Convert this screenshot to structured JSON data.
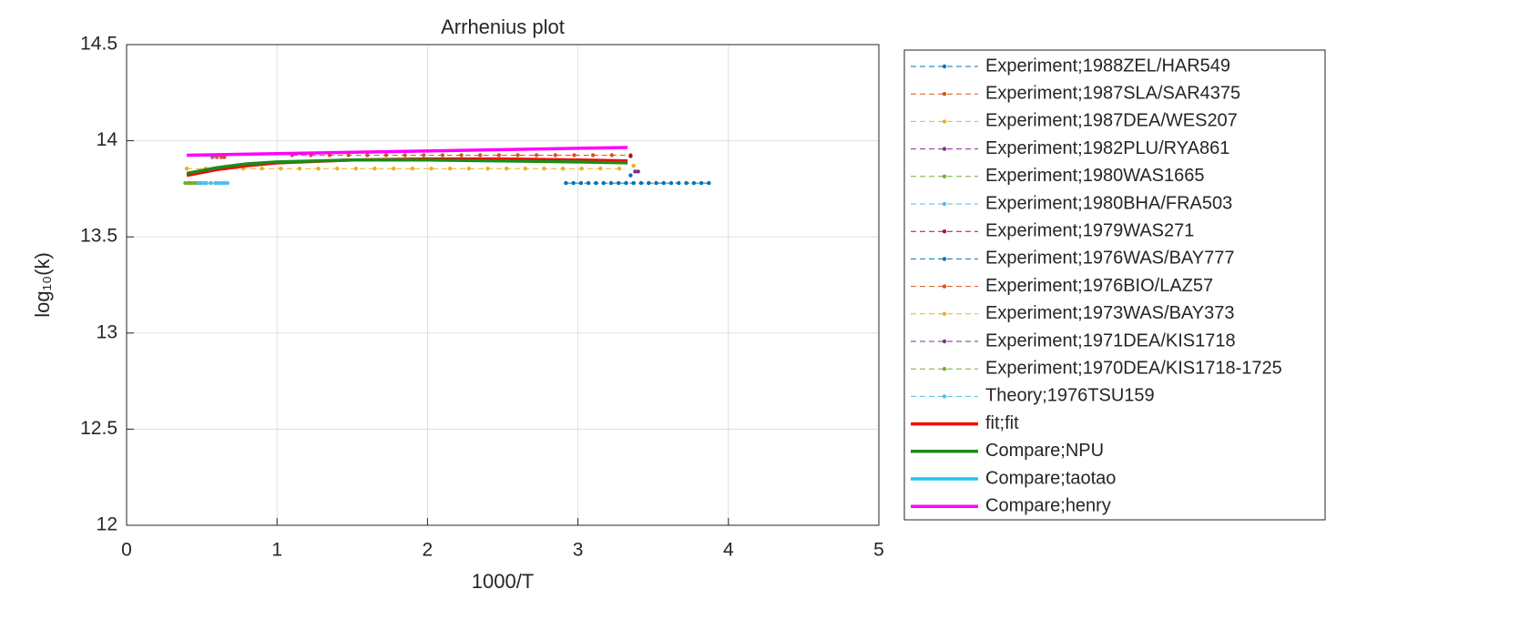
{
  "chart_data": {
    "type": "line",
    "title": "Arrhenius plot",
    "xlabel": "1000/T",
    "ylabel": "log₁₀(k)",
    "xlim": [
      0,
      5
    ],
    "ylim": [
      12,
      14.5
    ],
    "xticks": [
      0,
      1,
      2,
      3,
      4,
      5
    ],
    "yticks": [
      12,
      12.5,
      13,
      13.5,
      14,
      14.5
    ],
    "grid": true,
    "legend": "outside-right",
    "series": [
      {
        "name": "Experiment;1988ZEL/HAR549",
        "color": "#0072BD",
        "linestyle": "dashed",
        "x": [
          2.92,
          2.97,
          3.02,
          3.07,
          3.12,
          3.17,
          3.22,
          3.27,
          3.32,
          3.37,
          3.42,
          3.47,
          3.52,
          3.57,
          3.62,
          3.67,
          3.72,
          3.77,
          3.82,
          3.87
        ],
        "values": [
          13.78,
          13.78,
          13.78,
          13.78,
          13.78,
          13.78,
          13.78,
          13.78,
          13.78,
          13.78,
          13.78,
          13.78,
          13.78,
          13.78,
          13.78,
          13.78,
          13.78,
          13.78,
          13.78,
          13.78
        ]
      },
      {
        "name": "Experiment;1987SLA/SAR4375",
        "color": "#D95319",
        "linestyle": "dashed",
        "x": [
          1.1,
          1.225,
          1.35,
          1.475,
          1.6,
          1.725,
          1.85,
          1.975,
          2.1,
          2.225,
          2.35,
          2.475,
          2.6,
          2.725,
          2.85,
          2.975,
          3.1,
          3.225,
          3.35
        ],
        "values": [
          13.925,
          13.925,
          13.925,
          13.925,
          13.925,
          13.925,
          13.925,
          13.925,
          13.925,
          13.925,
          13.925,
          13.925,
          13.925,
          13.925,
          13.925,
          13.925,
          13.925,
          13.925,
          13.925
        ]
      },
      {
        "name": "Experiment;1987DEA/WES207",
        "color": "#EDB120",
        "linestyle": "dashed",
        "x": [
          0.4,
          0.525,
          0.65,
          0.775,
          0.9,
          1.025,
          1.15,
          1.275,
          1.4,
          1.525,
          1.65,
          1.775,
          1.9,
          2.025,
          2.15,
          2.275,
          2.4,
          2.525,
          2.65,
          2.775,
          2.9,
          3.025,
          3.15,
          3.275
        ],
        "values": [
          13.855,
          13.855,
          13.855,
          13.855,
          13.855,
          13.855,
          13.855,
          13.855,
          13.855,
          13.855,
          13.855,
          13.855,
          13.855,
          13.855,
          13.855,
          13.855,
          13.855,
          13.855,
          13.855,
          13.855,
          13.855,
          13.855,
          13.855,
          13.855
        ]
      },
      {
        "name": "Experiment;1982PLU/RYA861",
        "color": "#7E2F8E",
        "linestyle": "dashed",
        "x": [
          3.38
        ],
        "values": [
          13.84
        ]
      },
      {
        "name": "Experiment;1980WAS1665",
        "color": "#77AC30",
        "linestyle": "dashed",
        "x": [
          0.39,
          0.41,
          0.43,
          0.45,
          0.47,
          0.49
        ],
        "values": [
          13.78,
          13.78,
          13.78,
          13.78,
          13.78,
          13.78
        ]
      },
      {
        "name": "Experiment;1980BHA/FRA503",
        "color": "#4DBEEE",
        "linestyle": "dashed",
        "x": [
          0.5,
          0.53,
          0.56,
          0.59,
          0.62,
          0.65
        ],
        "values": [
          13.78,
          13.78,
          13.78,
          13.78,
          13.78,
          13.78
        ]
      },
      {
        "name": "Experiment;1979WAS271",
        "color": "#A2142F",
        "linestyle": "dashed",
        "x": [
          3.35
        ],
        "values": [
          13.92
        ]
      },
      {
        "name": "Experiment;1976WAS/BAY777",
        "color": "#0072BD",
        "linestyle": "dashed",
        "x": [
          3.35
        ],
        "values": [
          13.82
        ]
      },
      {
        "name": "Experiment;1976BIO/LAZ57",
        "color": "#D95319",
        "linestyle": "dashed",
        "x": [
          0.57,
          0.6,
          0.63,
          0.65
        ],
        "values": [
          13.915,
          13.915,
          13.915,
          13.915
        ]
      },
      {
        "name": "Experiment;1973WAS/BAY373",
        "color": "#EDB120",
        "linestyle": "dashed",
        "x": [
          3.37
        ],
        "values": [
          13.87
        ]
      },
      {
        "name": "Experiment;1971DEA/KIS1718",
        "color": "#7E2F8E",
        "linestyle": "dashed",
        "x": [
          3.4
        ],
        "values": [
          13.84
        ]
      },
      {
        "name": "Experiment;1970DEA/KIS1718-1725",
        "color": "#77AC30",
        "linestyle": "dashed",
        "x": [
          0.42
        ],
        "values": [
          13.78
        ]
      },
      {
        "name": "Theory;1976TSU159",
        "color": "#4DBEEE",
        "linestyle": "dashed",
        "x": [
          0.48,
          0.52,
          0.56,
          0.6,
          0.64,
          0.67
        ],
        "values": [
          13.78,
          13.78,
          13.78,
          13.78,
          13.78,
          13.78
        ]
      },
      {
        "name": "fit;fit",
        "color": "#FF0000",
        "linestyle": "solid",
        "x": [
          0.4,
          0.6,
          0.8,
          1,
          1.5,
          2,
          2.5,
          3,
          3.33
        ],
        "values": [
          13.82,
          13.85,
          13.87,
          13.885,
          13.9,
          13.905,
          13.905,
          13.9,
          13.895
        ]
      },
      {
        "name": "Compare;NPU",
        "color": "#1A8C1A",
        "linestyle": "solid",
        "x": [
          0.4,
          0.6,
          0.8,
          1,
          1.5,
          2,
          2.5,
          3,
          3.33
        ],
        "values": [
          13.83,
          13.86,
          13.88,
          13.89,
          13.9,
          13.9,
          13.895,
          13.89,
          13.885
        ]
      },
      {
        "name": "Compare;taotao",
        "color": "#1EC8F0",
        "linestyle": "solid",
        "x": [
          0.42,
          0.6
        ],
        "values": [
          13.925,
          13.925
        ]
      },
      {
        "name": "Compare;henry",
        "color": "#FF00FF",
        "linestyle": "solid",
        "x": [
          0.4,
          3.33
        ],
        "values": [
          13.925,
          13.965
        ]
      }
    ]
  }
}
